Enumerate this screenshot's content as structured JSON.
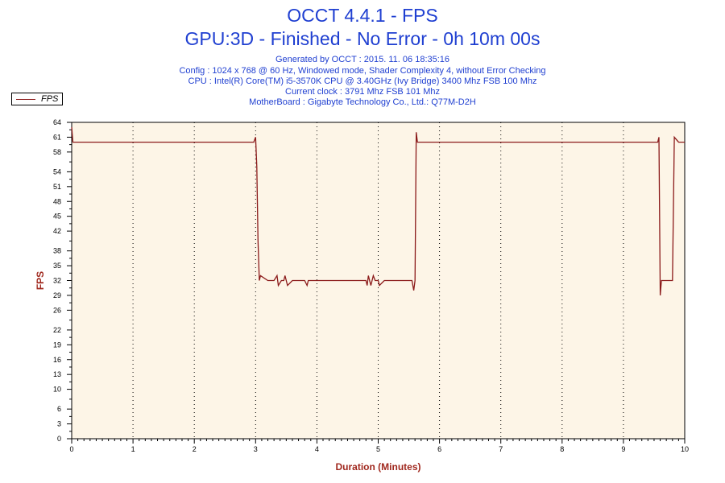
{
  "header": {
    "title": "OCCT 4.4.1 - FPS",
    "subtitle": "GPU:3D - Finished - No Error - 0h 10m 00s",
    "info_lines": [
      "Generated by OCCT : 2015. 11. 06 18:35:16",
      "Config : 1024 x 768 @ 60 Hz, Windowed mode, Shader Complexity 4, without Error Checking",
      "CPU : Intel(R) Core(TM) i5-3570K CPU @ 3.40GHz (Ivy Bridge) 3400 Mhz FSB 100 Mhz",
      "Current clock : 3791 Mhz FSB 101 Mhz",
      "MotherBoard : Gigabyte Technology Co., Ltd.: Q77M-D2H"
    ]
  },
  "colors": {
    "title": "#1f3fd1",
    "axis_label": "#a0281e",
    "plot_background": "#fdf5e7",
    "series_line": "#8b1a1a",
    "grid": "#000000"
  },
  "chart_data": {
    "type": "line",
    "title": "OCCT 4.4.1 - FPS",
    "xlabel": "Duration (Minutes)",
    "ylabel": "FPS",
    "xlim": [
      0,
      10
    ],
    "ylim": [
      0,
      64
    ],
    "x_ticks": [
      0,
      1,
      2,
      3,
      4,
      5,
      6,
      7,
      8,
      9,
      10
    ],
    "y_ticks": [
      0,
      3,
      6,
      10,
      13,
      16,
      19,
      22,
      26,
      29,
      32,
      35,
      38,
      42,
      45,
      48,
      51,
      54,
      58,
      61,
      64
    ],
    "grid": "vertical dotted lines at each minute",
    "legend": {
      "position": "top-left",
      "entries": [
        "FPS"
      ]
    },
    "series": [
      {
        "name": "FPS",
        "x": [
          0.0,
          0.02,
          0.04,
          0.06,
          0.5,
          1.0,
          1.5,
          2.0,
          2.5,
          2.97,
          3.0,
          3.02,
          3.04,
          3.06,
          3.08,
          3.2,
          3.3,
          3.35,
          3.37,
          3.42,
          3.46,
          3.48,
          3.52,
          3.6,
          3.8,
          3.84,
          3.86,
          3.9,
          4.2,
          4.5,
          4.8,
          4.82,
          4.84,
          4.86,
          4.88,
          4.9,
          4.92,
          4.95,
          5.0,
          5.02,
          5.1,
          5.2,
          5.3,
          5.5,
          5.55,
          5.58,
          5.6,
          5.62,
          5.64,
          5.7,
          6.0,
          6.5,
          7.0,
          7.5,
          8.0,
          8.5,
          9.0,
          9.5,
          9.56,
          9.58,
          9.6,
          9.62,
          9.65,
          9.7,
          9.75,
          9.78,
          9.8,
          9.83,
          9.9,
          10.0
        ],
        "values": [
          63,
          60,
          60,
          60,
          60,
          60,
          60,
          60,
          60,
          60,
          61,
          55,
          40,
          32,
          33,
          32,
          32,
          33,
          31,
          32,
          32,
          33,
          31,
          32,
          32,
          31,
          32,
          32,
          32,
          32,
          32,
          31,
          33,
          32,
          31,
          32,
          33,
          32,
          32,
          31,
          32,
          32,
          32,
          32,
          32,
          30,
          32,
          62,
          60,
          60,
          60,
          60,
          60,
          60,
          60,
          60,
          60,
          60,
          60,
          61,
          29,
          32,
          32,
          32,
          32,
          32,
          32,
          61,
          60,
          60
        ]
      }
    ]
  }
}
